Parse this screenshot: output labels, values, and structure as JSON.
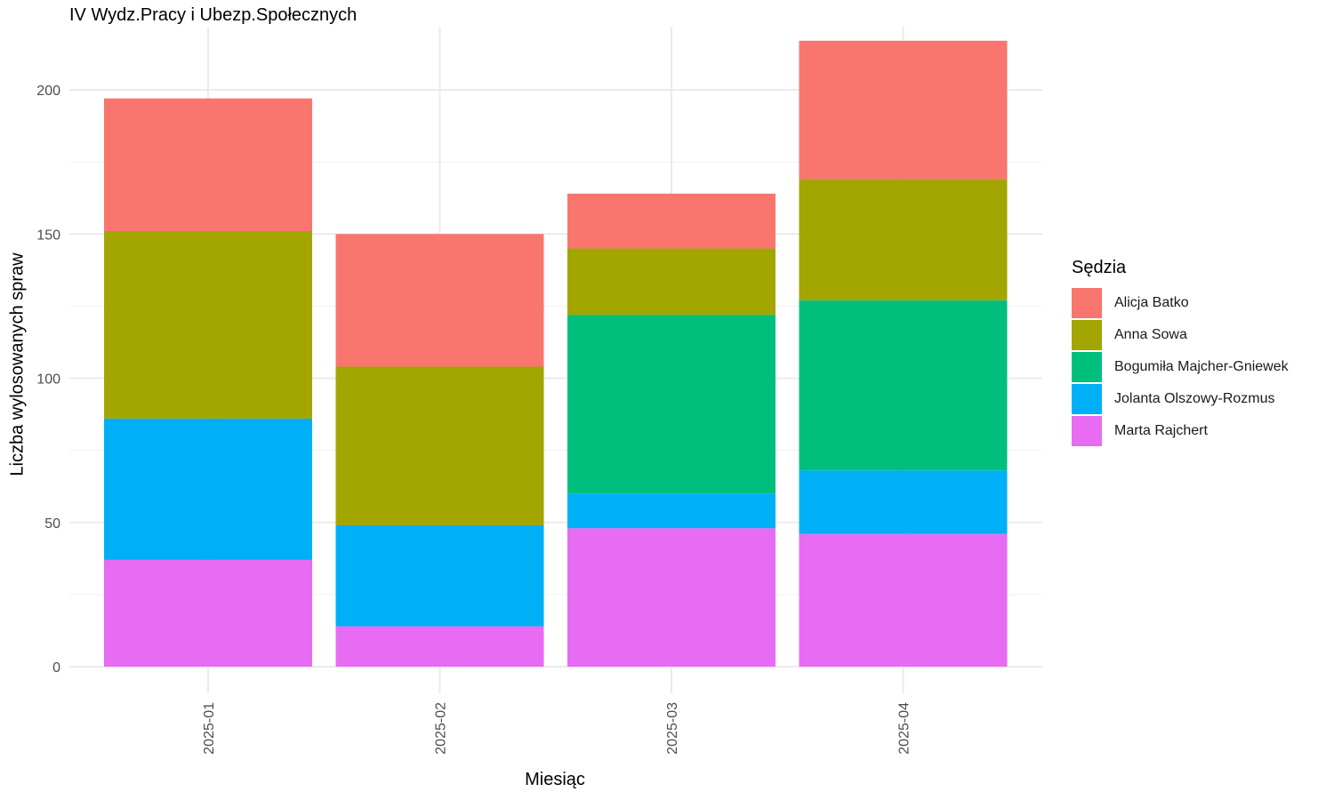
{
  "chart_data": {
    "type": "bar",
    "stacked": true,
    "title": "IV Wydz.Pracy i Ubezp.Społecznych",
    "xlabel": "Miesiąc",
    "ylabel": "Liczba wylosowanych spraw",
    "legend_title": "Sędzia",
    "legend_position": "right",
    "grid": true,
    "categories": [
      "2025-01",
      "2025-02",
      "2025-03",
      "2025-04"
    ],
    "y_ticks": [
      0,
      50,
      100,
      150,
      200
    ],
    "ylim": [
      0,
      220
    ],
    "series": [
      {
        "name": "Alicja Batko",
        "color": "#F8766D",
        "values": [
          46,
          46,
          19,
          48
        ]
      },
      {
        "name": "Anna Sowa",
        "color": "#A3A500",
        "values": [
          65,
          55,
          23,
          42
        ]
      },
      {
        "name": "Bogumiła Majcher-Gniewek",
        "color": "#00BF7D",
        "values": [
          0,
          0,
          62,
          59
        ]
      },
      {
        "name": "Jolanta Olszowy-Rozmus",
        "color": "#00B0F6",
        "values": [
          49,
          35,
          12,
          22
        ]
      },
      {
        "name": "Marta Rajchert",
        "color": "#E76BF3",
        "values": [
          37,
          14,
          48,
          46
        ]
      }
    ]
  }
}
